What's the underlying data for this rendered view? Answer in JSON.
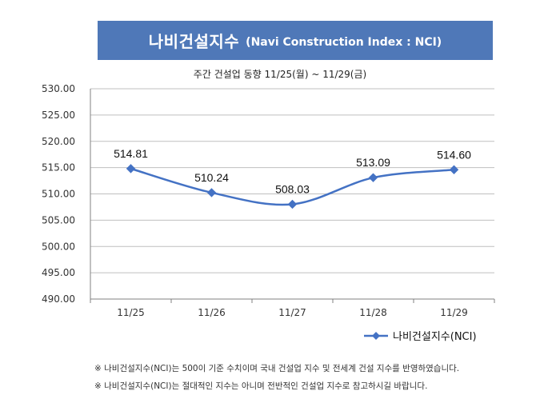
{
  "header": {
    "title_ko": "나비건설지수",
    "title_en": "(Navi Construction Index : NCI)"
  },
  "subtitle": "주간 건설업 동향 11/25(월) ~ 11/29(금)",
  "notes": [
    "※ 나비건설지수(NCI)는 500이 기준 수치이며 국내 건설업 지수 및 전세계 건설 지수를 반영하였습니다.",
    "※ 나비건설지수(NCI)는 절대적인 지수는 아니며 전반적인 건설업 지수로 참고하시길 바랍니다."
  ],
  "colors": {
    "banner": "#4f78b8",
    "line": "#4472c4",
    "grid": "#bfbfbf"
  },
  "chart_data": {
    "type": "line",
    "categories": [
      "11/25",
      "11/26",
      "11/27",
      "11/28",
      "11/29"
    ],
    "series": [
      {
        "name": "나비건설지수(NCI)",
        "values": [
          514.81,
          510.24,
          508.03,
          513.09,
          514.6
        ],
        "data_labels": [
          "514.81",
          "510.24",
          "508.03",
          "513.09",
          "514.60"
        ],
        "marker": "diamond",
        "smooth": true
      }
    ],
    "y_ticks": [
      "530.00",
      "525.00",
      "520.00",
      "515.00",
      "510.00",
      "505.00",
      "500.00",
      "495.00",
      "490.00"
    ],
    "ylim": [
      490,
      530
    ],
    "grid": true,
    "legend": "bottom-right"
  }
}
